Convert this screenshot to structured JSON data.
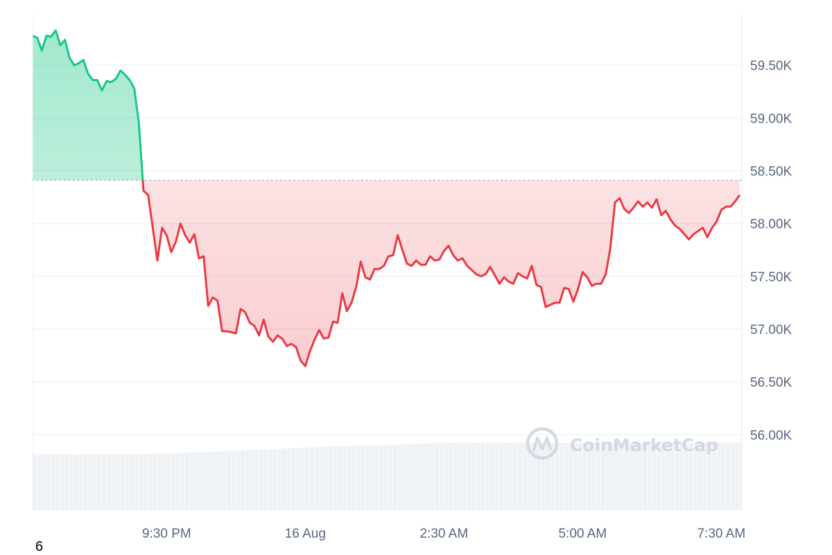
{
  "chart_data": {
    "type": "area",
    "title": "",
    "xlabel": "",
    "ylabel": "",
    "ylim": [
      55280,
      60000
    ],
    "y_ticks": [
      {
        "value": 59500,
        "label": "59.50K"
      },
      {
        "value": 59000,
        "label": "59.00K"
      },
      {
        "value": 58500,
        "label": "58.50K"
      },
      {
        "value": 58000,
        "label": "58.00K"
      },
      {
        "value": 57500,
        "label": "57.50K"
      },
      {
        "value": 57000,
        "label": "57.00K"
      },
      {
        "value": 56500,
        "label": "56.50K"
      },
      {
        "value": 56000,
        "label": "56.00K"
      }
    ],
    "x_ticks": [
      {
        "time": "21:30",
        "label": "9:30 PM"
      },
      {
        "time": "00:00",
        "label": "16 Aug"
      },
      {
        "time": "02:30",
        "label": "2:30 AM"
      },
      {
        "time": "05:00",
        "label": "5:00 AM"
      },
      {
        "time": "07:30",
        "label": "7:30 AM"
      }
    ],
    "x_range": [
      "19:05",
      "07:50"
    ],
    "reference_price": 58410,
    "grid": "horizontal",
    "colors": {
      "up": "#16c784",
      "down": "#ea3943",
      "grid": "#eff2f5",
      "volume": "#eff2f5",
      "tick": "#58667e",
      "watermark": "#cfd6e4"
    },
    "series": [
      {
        "points": [
          [
            "19:05",
            59780
          ],
          [
            "19:10",
            59760
          ],
          [
            "19:15",
            59640
          ],
          [
            "19:20",
            59780
          ],
          [
            "19:25",
            59770
          ],
          [
            "19:30",
            59830
          ],
          [
            "19:35",
            59690
          ],
          [
            "19:40",
            59740
          ],
          [
            "19:45",
            59570
          ],
          [
            "19:50",
            59500
          ],
          [
            "19:55",
            59520
          ],
          [
            "20:00",
            59550
          ],
          [
            "20:05",
            59420
          ],
          [
            "20:10",
            59360
          ],
          [
            "20:15",
            59360
          ],
          [
            "20:20",
            59260
          ],
          [
            "20:25",
            59350
          ],
          [
            "20:30",
            59340
          ],
          [
            "20:35",
            59370
          ],
          [
            "20:40",
            59450
          ],
          [
            "20:45",
            59410
          ],
          [
            "20:50",
            59360
          ],
          [
            "20:55",
            59280
          ],
          [
            "21:00",
            58950
          ],
          [
            "21:05",
            58310
          ],
          [
            "21:10",
            58270
          ],
          [
            "21:15",
            57960
          ],
          [
            "21:20",
            57650
          ],
          [
            "21:25",
            57960
          ],
          [
            "21:30",
            57890
          ],
          [
            "21:35",
            57730
          ],
          [
            "21:40",
            57830
          ],
          [
            "21:45",
            58000
          ],
          [
            "21:50",
            57890
          ],
          [
            "21:55",
            57820
          ],
          [
            "22:00",
            57900
          ],
          [
            "22:05",
            57670
          ],
          [
            "22:10",
            57690
          ],
          [
            "22:15",
            57220
          ],
          [
            "22:20",
            57300
          ],
          [
            "22:25",
            57270
          ],
          [
            "22:30",
            56980
          ],
          [
            "22:35",
            56980
          ],
          [
            "22:40",
            56970
          ],
          [
            "22:45",
            56960
          ],
          [
            "22:50",
            57190
          ],
          [
            "22:55",
            57160
          ],
          [
            "23:00",
            57060
          ],
          [
            "23:05",
            57030
          ],
          [
            "23:10",
            56940
          ],
          [
            "23:15",
            57090
          ],
          [
            "23:20",
            56930
          ],
          [
            "23:25",
            56880
          ],
          [
            "23:30",
            56940
          ],
          [
            "23:35",
            56910
          ],
          [
            "23:40",
            56840
          ],
          [
            "23:45",
            56860
          ],
          [
            "23:50",
            56830
          ],
          [
            "23:55",
            56700
          ],
          [
            "00:00",
            56650
          ],
          [
            "00:05",
            56790
          ],
          [
            "00:10",
            56900
          ],
          [
            "00:15",
            56990
          ],
          [
            "00:20",
            56910
          ],
          [
            "00:25",
            56920
          ],
          [
            "00:30",
            57070
          ],
          [
            "00:35",
            57060
          ],
          [
            "00:40",
            57340
          ],
          [
            "00:45",
            57170
          ],
          [
            "00:50",
            57250
          ],
          [
            "00:55",
            57400
          ],
          [
            "01:00",
            57640
          ],
          [
            "01:05",
            57490
          ],
          [
            "01:10",
            57470
          ],
          [
            "01:15",
            57570
          ],
          [
            "01:20",
            57570
          ],
          [
            "01:25",
            57600
          ],
          [
            "01:30",
            57690
          ],
          [
            "01:35",
            57700
          ],
          [
            "01:40",
            57890
          ],
          [
            "01:45",
            57750
          ],
          [
            "01:50",
            57620
          ],
          [
            "01:55",
            57600
          ],
          [
            "02:00",
            57650
          ],
          [
            "02:05",
            57610
          ],
          [
            "02:10",
            57610
          ],
          [
            "02:15",
            57690
          ],
          [
            "02:20",
            57650
          ],
          [
            "02:25",
            57660
          ],
          [
            "02:30",
            57740
          ],
          [
            "02:35",
            57790
          ],
          [
            "02:40",
            57700
          ],
          [
            "02:45",
            57650
          ],
          [
            "02:50",
            57670
          ],
          [
            "02:55",
            57600
          ],
          [
            "03:00",
            57560
          ],
          [
            "03:05",
            57520
          ],
          [
            "03:10",
            57500
          ],
          [
            "03:15",
            57520
          ],
          [
            "03:20",
            57590
          ],
          [
            "03:25",
            57510
          ],
          [
            "03:30",
            57430
          ],
          [
            "03:35",
            57490
          ],
          [
            "03:40",
            57450
          ],
          [
            "03:45",
            57430
          ],
          [
            "03:50",
            57530
          ],
          [
            "03:55",
            57500
          ],
          [
            "04:00",
            57480
          ],
          [
            "04:05",
            57600
          ],
          [
            "04:10",
            57420
          ],
          [
            "04:15",
            57400
          ],
          [
            "04:20",
            57210
          ],
          [
            "04:25",
            57230
          ],
          [
            "04:30",
            57250
          ],
          [
            "04:35",
            57250
          ],
          [
            "04:40",
            57390
          ],
          [
            "04:45",
            57380
          ],
          [
            "04:50",
            57260
          ],
          [
            "04:55",
            57380
          ],
          [
            "05:00",
            57540
          ],
          [
            "05:05",
            57490
          ],
          [
            "05:10",
            57410
          ],
          [
            "05:15",
            57430
          ],
          [
            "05:20",
            57430
          ],
          [
            "05:25",
            57520
          ],
          [
            "05:30",
            57770
          ],
          [
            "05:35",
            58200
          ],
          [
            "05:40",
            58240
          ],
          [
            "05:45",
            58140
          ],
          [
            "05:50",
            58100
          ],
          [
            "05:55",
            58150
          ],
          [
            "06:00",
            58210
          ],
          [
            "06:05",
            58160
          ],
          [
            "06:10",
            58200
          ],
          [
            "06:15",
            58150
          ],
          [
            "06:20",
            58230
          ],
          [
            "06:25",
            58080
          ],
          [
            "06:30",
            58120
          ],
          [
            "06:35",
            58040
          ],
          [
            "06:40",
            57980
          ],
          [
            "06:45",
            57950
          ],
          [
            "06:50",
            57900
          ],
          [
            "06:55",
            57850
          ],
          [
            "07:00",
            57900
          ],
          [
            "07:05",
            57930
          ],
          [
            "07:10",
            57960
          ],
          [
            "07:15",
            57870
          ],
          [
            "07:20",
            57960
          ],
          [
            "07:25",
            58020
          ],
          [
            "07:30",
            58130
          ],
          [
            "07:35",
            58160
          ],
          [
            "07:40",
            58160
          ],
          [
            "07:45",
            58210
          ],
          [
            "07:50",
            58270
          ]
        ]
      }
    ],
    "volume_relative": [
      [
        "19:05",
        0.82
      ],
      [
        "19:50",
        0.81
      ],
      [
        "21:20",
        0.82
      ],
      [
        "22:30",
        0.86
      ],
      [
        "23:40",
        0.9
      ],
      [
        "00:30",
        0.93
      ],
      [
        "01:30",
        0.95
      ],
      [
        "02:30",
        0.98
      ],
      [
        "07:50",
        0.98
      ]
    ]
  },
  "watermark": {
    "text": "CoinMarketCap"
  },
  "corner_label": "6"
}
